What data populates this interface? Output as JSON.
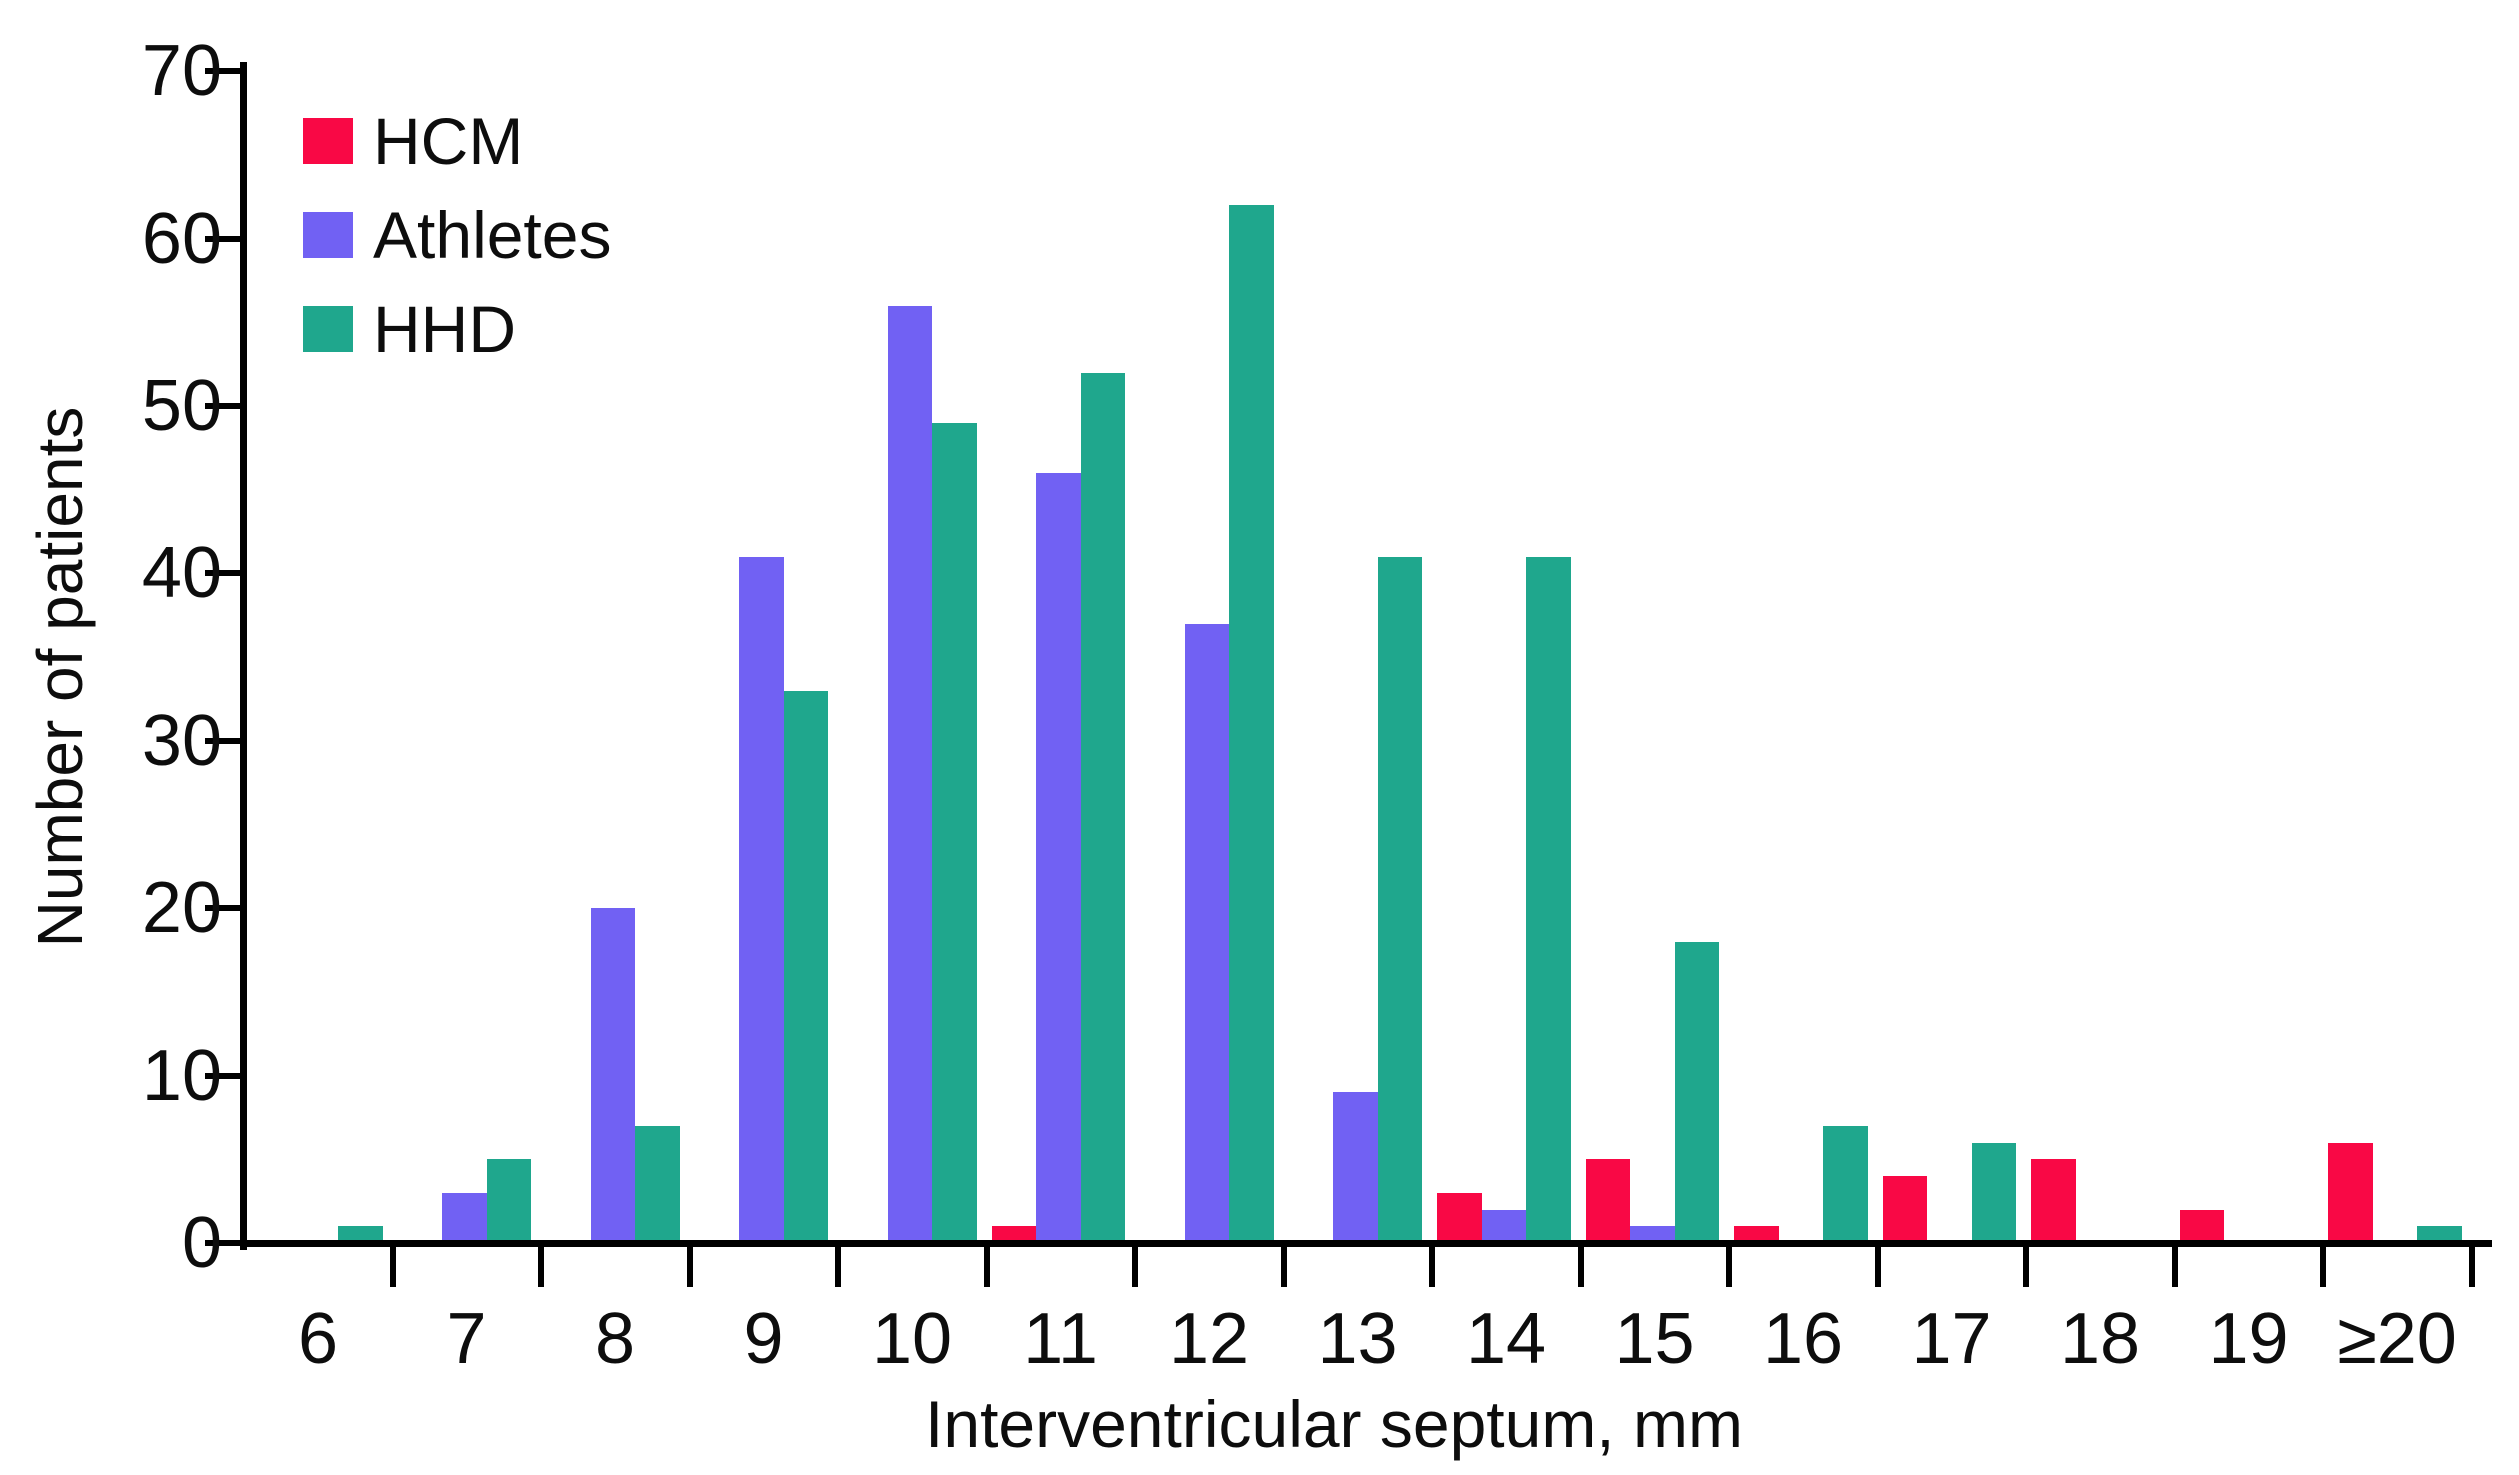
{
  "chart_data": {
    "type": "bar",
    "title": "",
    "xlabel": "Interventricular septum, mm",
    "ylabel": "Number of patients",
    "categories": [
      "6",
      "7",
      "8",
      "9",
      "10",
      "11",
      "12",
      "13",
      "14",
      "15",
      "16",
      "17",
      "18",
      "19",
      "≥20"
    ],
    "series": [
      {
        "name": "HCM",
        "color": "#F90845",
        "values": [
          0,
          0,
          0,
          0,
          0,
          1,
          0,
          0,
          3,
          5,
          1,
          4,
          5,
          2,
          6
        ]
      },
      {
        "name": "Athletes",
        "color": "#7161F3",
        "values": [
          0,
          3,
          20,
          41,
          56,
          46,
          37,
          9,
          2,
          1,
          0,
          0,
          0,
          0,
          0
        ]
      },
      {
        "name": "HHD",
        "color": "#1FA78D",
        "values": [
          1,
          5,
          7,
          33,
          49,
          52,
          62,
          41,
          41,
          18,
          7,
          6,
          0,
          0,
          1
        ]
      }
    ],
    "ylim": [
      0,
      70
    ],
    "yticks": [
      0,
      10,
      20,
      30,
      40,
      50,
      60,
      70
    ],
    "grid": false,
    "legend_position": "top-left",
    "axis_color": "#000000",
    "text_color": "#0d0d0d"
  }
}
